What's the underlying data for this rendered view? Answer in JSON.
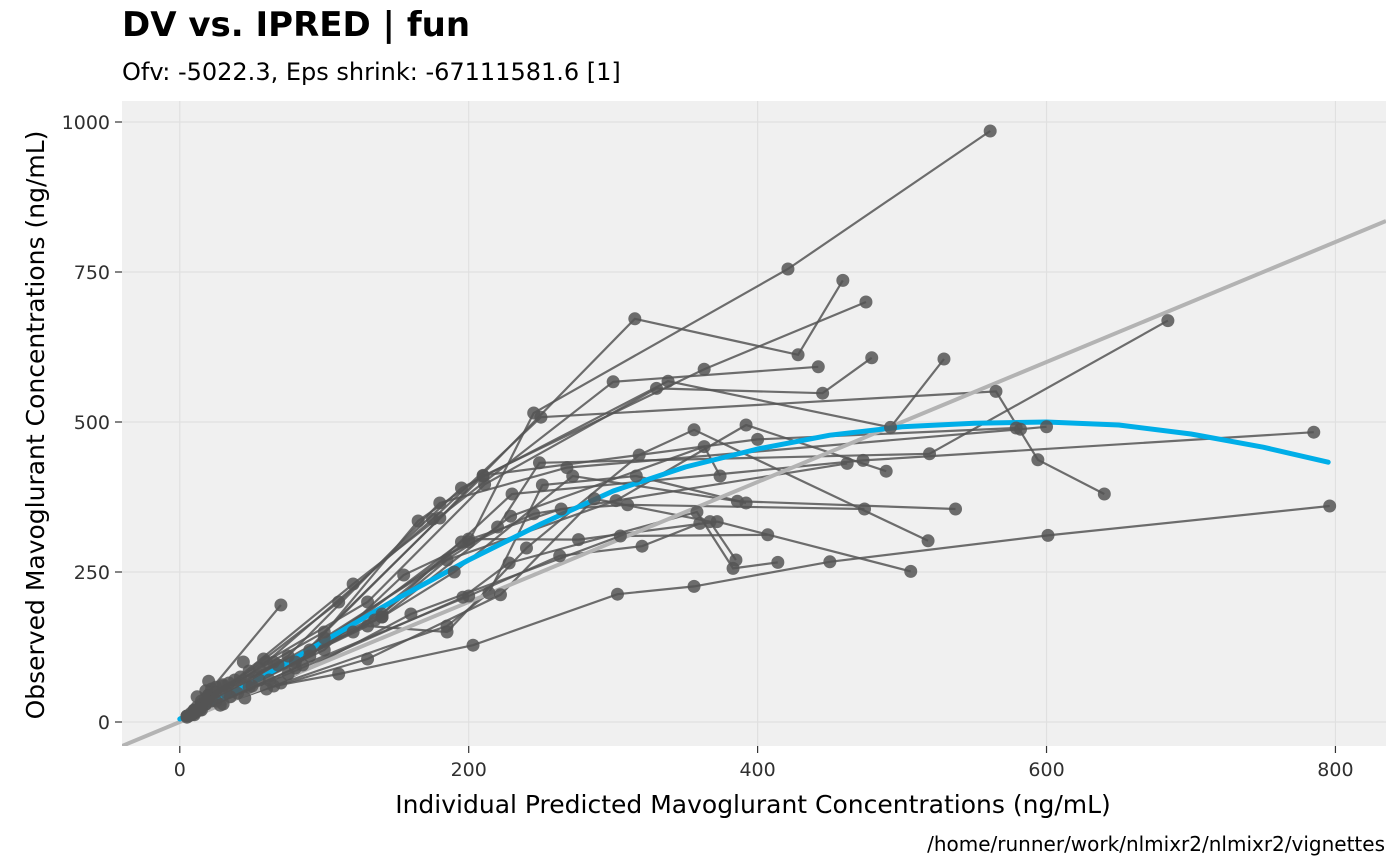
{
  "chart_data": {
    "type": "scatter",
    "title": "DV vs. IPRED | fun",
    "subtitle": "Ofv: -5022.3, Eps shrink: -67111581.6 [1]",
    "xlabel": "Individual Predicted Mavoglurant Concentrations (ng/mL)",
    "ylabel": "Observed Mavoglurant Concentrations (ng/mL)",
    "caption": "/home/runner/work/nlmixr2/nlmixr2/vignettes",
    "xlim": [
      -40,
      835
    ],
    "ylim": [
      -40,
      1035
    ],
    "x_ticks": [
      0,
      200,
      400,
      600,
      800
    ],
    "y_ticks": [
      0,
      250,
      500,
      750,
      1000
    ],
    "grid": true,
    "panel_background": "#f0f0f0",
    "grid_color": "#e0e0e0",
    "point_color": "#555555",
    "line_color": "#555555",
    "identity_color": "#b3b3b3",
    "smooth_color": "#00aee8",
    "identity_line": {
      "slope": 1,
      "intercept": 0
    },
    "smooth": {
      "x": [
        0,
        50,
        100,
        150,
        200,
        250,
        300,
        350,
        400,
        450,
        500,
        550,
        600,
        650,
        700,
        750,
        795
      ],
      "y": [
        5,
        65,
        135,
        205,
        270,
        330,
        385,
        425,
        455,
        478,
        492,
        498,
        500,
        495,
        480,
        458,
        433
      ]
    },
    "subjects": [
      [
        [
          10,
          20
        ],
        [
          90,
          120
        ],
        [
          200,
          300
        ],
        [
          245,
          515
        ],
        [
          421,
          755
        ],
        [
          561,
          985
        ]
      ],
      [
        [
          12,
          20
        ],
        [
          80,
          100
        ],
        [
          180,
          340
        ],
        [
          315,
          672
        ],
        [
          428,
          612
        ],
        [
          459,
          736
        ]
      ],
      [
        [
          15,
          35
        ],
        [
          100,
          150
        ],
        [
          210,
          410
        ],
        [
          363,
          588
        ],
        [
          475,
          700
        ]
      ],
      [
        [
          18,
          30
        ],
        [
          120,
          230
        ],
        [
          300,
          567
        ],
        [
          442,
          592
        ]
      ],
      [
        [
          20,
          45
        ],
        [
          130,
          200
        ],
        [
          211,
          396
        ],
        [
          330,
          556
        ],
        [
          445,
          548
        ],
        [
          479,
          607
        ]
      ],
      [
        [
          8,
          15
        ],
        [
          70,
          195
        ]
      ],
      [
        [
          10,
          15
        ],
        [
          110,
          200
        ],
        [
          195,
          390
        ],
        [
          338,
          568
        ],
        [
          492,
          491
        ],
        [
          529,
          605
        ]
      ],
      [
        [
          5,
          10
        ],
        [
          75,
          110
        ],
        [
          180,
          365
        ],
        [
          268,
          424
        ],
        [
          582,
          488
        ],
        [
          600,
          492
        ]
      ],
      [
        [
          10,
          12
        ],
        [
          60,
          100
        ],
        [
          175,
          338
        ],
        [
          250,
          508
        ],
        [
          565,
          551
        ],
        [
          594,
          437
        ],
        [
          640,
          380
        ]
      ],
      [
        [
          15,
          25
        ],
        [
          100,
          140
        ],
        [
          220,
          325
        ],
        [
          249,
          432
        ],
        [
          519,
          447
        ],
        [
          684,
          669
        ]
      ],
      [
        [
          20,
          40
        ],
        [
          140,
          180
        ],
        [
          230,
          380
        ],
        [
          473,
          436
        ],
        [
          785,
          483
        ]
      ],
      [
        [
          5,
          8
        ],
        [
          80,
          90
        ],
        [
          165,
          335
        ],
        [
          210,
          411
        ],
        [
          400,
          471
        ],
        [
          579,
          490
        ]
      ],
      [
        [
          12,
          20
        ],
        [
          100,
          120
        ],
        [
          155,
          245
        ],
        [
          245,
          347
        ],
        [
          462,
          431
        ]
      ],
      [
        [
          18,
          30
        ],
        [
          130,
          160
        ],
        [
          185,
          150
        ],
        [
          240,
          290
        ],
        [
          318,
          445
        ],
        [
          356,
          487
        ],
        [
          518,
          302
        ]
      ],
      [
        [
          22,
          35
        ],
        [
          140,
          175
        ],
        [
          190,
          250
        ],
        [
          272,
          410
        ],
        [
          386,
          368
        ],
        [
          537,
          355
        ]
      ],
      [
        [
          10,
          20
        ],
        [
          90,
          110
        ],
        [
          195,
          300
        ],
        [
          264,
          355
        ],
        [
          310,
          362
        ],
        [
          474,
          355
        ]
      ],
      [
        [
          25,
          50
        ],
        [
          135,
          170
        ],
        [
          185,
          270
        ],
        [
          302,
          369
        ],
        [
          392,
          495
        ],
        [
          489,
          418
        ]
      ],
      [
        [
          30,
          60
        ],
        [
          120,
          150
        ],
        [
          200,
          305
        ],
        [
          276,
          304
        ],
        [
          372,
          334
        ],
        [
          506,
          251
        ]
      ],
      [
        [
          15,
          20
        ],
        [
          75,
          80
        ],
        [
          196,
          208
        ],
        [
          228,
          265
        ],
        [
          358,
          350
        ],
        [
          383,
          256
        ],
        [
          414,
          266
        ]
      ],
      [
        [
          20,
          40
        ],
        [
          110,
          80
        ],
        [
          203,
          128
        ],
        [
          303,
          213
        ],
        [
          356,
          226
        ],
        [
          450,
          267
        ],
        [
          601,
          311
        ],
        [
          796,
          360
        ]
      ],
      [
        [
          8,
          12
        ],
        [
          65,
          60
        ],
        [
          185,
          160
        ],
        [
          214,
          215
        ],
        [
          251,
          395
        ],
        [
          316,
          410
        ],
        [
          392,
          365
        ]
      ],
      [
        [
          10,
          15
        ],
        [
          60,
          55
        ],
        [
          130,
          105
        ],
        [
          222,
          212
        ],
        [
          287,
          372
        ],
        [
          367,
          334
        ],
        [
          385,
          270
        ]
      ],
      [
        [
          12,
          18
        ],
        [
          55,
          70
        ],
        [
          140,
          175
        ],
        [
          229,
          343
        ],
        [
          363,
          459
        ],
        [
          374,
          410
        ]
      ],
      [
        [
          6,
          10
        ],
        [
          70,
          65
        ],
        [
          160,
          180
        ],
        [
          305,
          310
        ],
        [
          407,
          312
        ]
      ],
      [
        [
          14,
          20
        ],
        [
          85,
          95
        ],
        [
          200,
          210
        ],
        [
          263,
          277
        ],
        [
          320,
          293
        ],
        [
          360,
          331
        ]
      ]
    ],
    "extra_points": [
      [
        5,
        10
      ],
      [
        8,
        12
      ],
      [
        10,
        18
      ],
      [
        12,
        25
      ],
      [
        15,
        30
      ],
      [
        18,
        40
      ],
      [
        20,
        45
      ],
      [
        22,
        55
      ],
      [
        25,
        35
      ],
      [
        28,
        28
      ],
      [
        30,
        62
      ],
      [
        32,
        50
      ],
      [
        35,
        42
      ],
      [
        38,
        70
      ],
      [
        40,
        48
      ],
      [
        42,
        75
      ],
      [
        45,
        40
      ],
      [
        48,
        85
      ],
      [
        50,
        60
      ],
      [
        55,
        90
      ],
      [
        58,
        105
      ],
      [
        62,
        70
      ],
      [
        65,
        100
      ],
      [
        68,
        95
      ],
      [
        12,
        42
      ],
      [
        20,
        68
      ],
      [
        44,
        100
      ],
      [
        30,
        30
      ],
      [
        25,
        58
      ],
      [
        34,
        65
      ],
      [
        48,
        58
      ],
      [
        18,
        52
      ]
    ]
  }
}
